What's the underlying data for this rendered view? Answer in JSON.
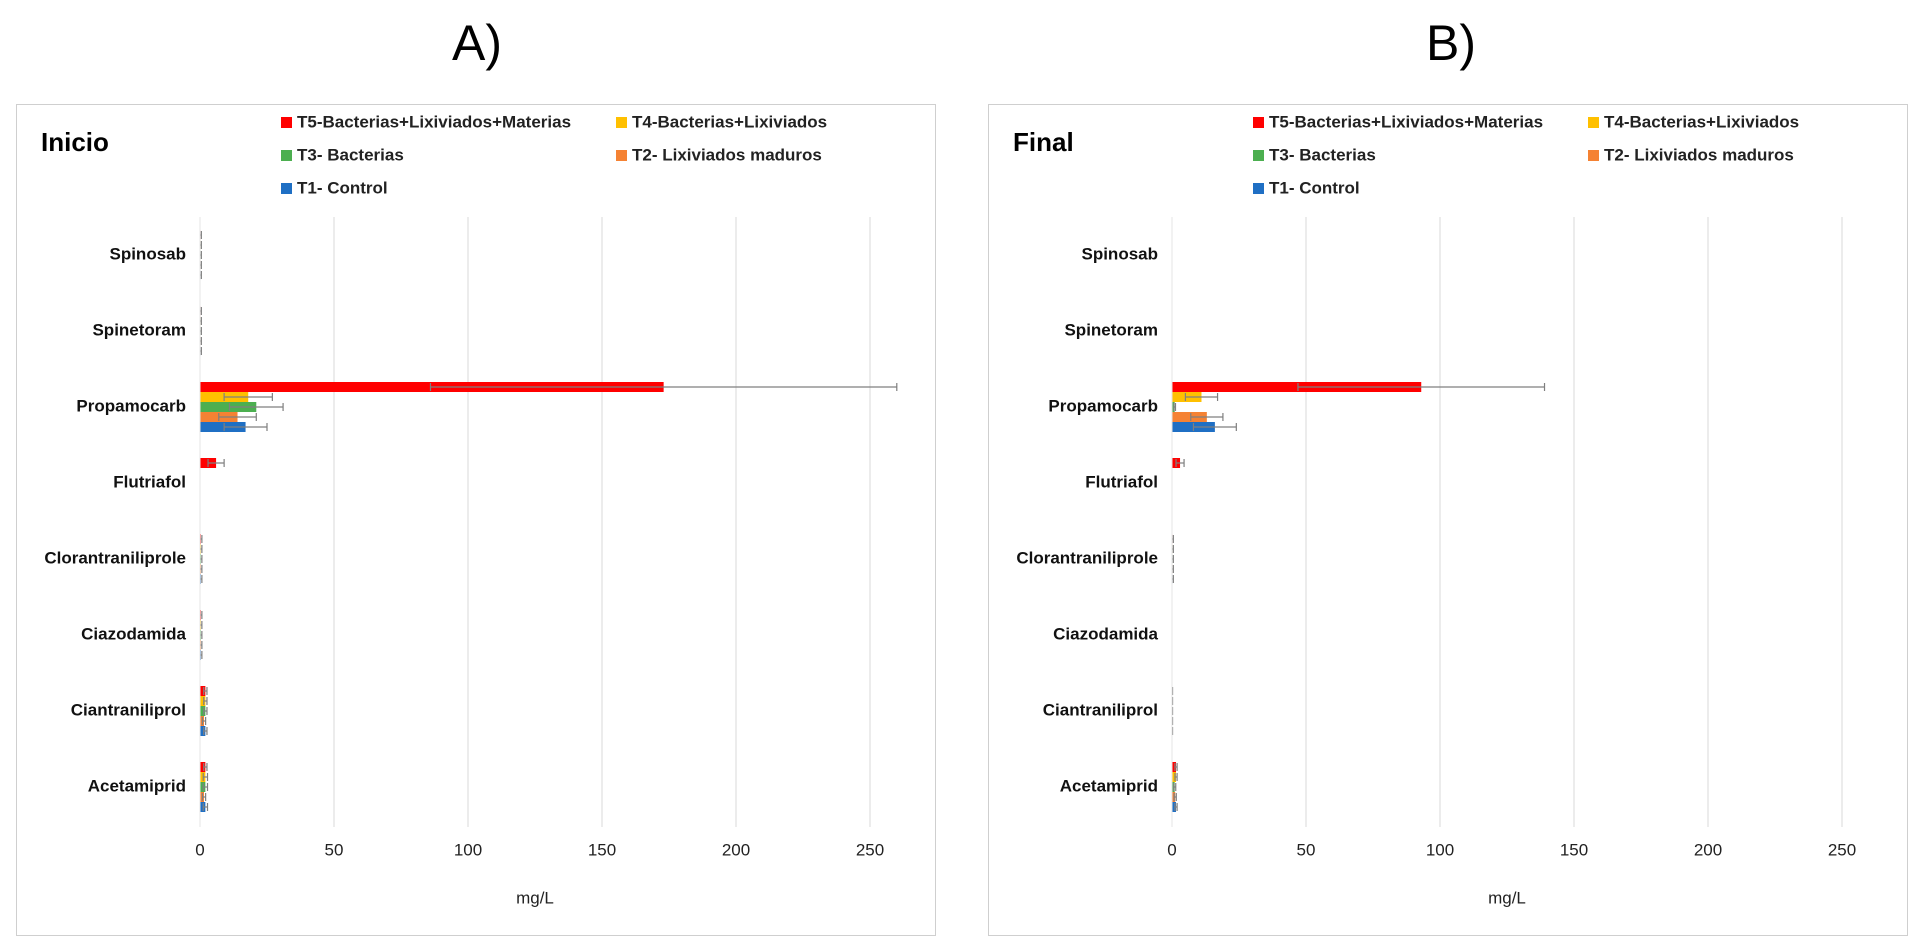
{
  "panels": [
    {
      "letter": "A)"
    },
    {
      "letter": "B)"
    }
  ],
  "chart_data": [
    {
      "type": "bar",
      "orientation": "horizontal",
      "title": "Inicio",
      "xlabel": "mg/L",
      "ylabel": "",
      "xlim": [
        0,
        250
      ],
      "xticks": [
        0,
        50,
        100,
        150,
        200,
        250
      ],
      "grid": "vertical",
      "legend_position": "top",
      "categories": [
        "Spinosab",
        "Spinetoram",
        "Propamocarb",
        "Flutriafol",
        "Clorantraniliprole",
        "Ciazodamida",
        "Ciantraniliprol",
        "Acetamiprid"
      ],
      "series": [
        {
          "name": "T5-Bacterias+Lixiviados+Materias",
          "color": "#ff0000",
          "values": [
            0.2,
            0.2,
            173,
            6,
            0.3,
            0.3,
            2,
            2
          ],
          "errors": [
            0.3,
            0.3,
            87,
            3,
            0.4,
            0.4,
            0.6,
            0.6
          ]
        },
        {
          "name": "T4-Bacterias+Lixiviados",
          "color": "#ffc000",
          "values": [
            0.2,
            0.2,
            18,
            0,
            0.3,
            0.3,
            2,
            2
          ],
          "errors": [
            0.3,
            0.3,
            9,
            0,
            0.4,
            0.4,
            0.6,
            0.8
          ]
        },
        {
          "name": "T3- Bacterias",
          "color": "#4caf50",
          "values": [
            0.2,
            0.2,
            21,
            0,
            0.3,
            0.3,
            2,
            2
          ],
          "errors": [
            0.3,
            0.3,
            10,
            0,
            0.4,
            0.4,
            0.6,
            0.8
          ]
        },
        {
          "name": "T2- Lixiviados maduros",
          "color": "#f58233",
          "values": [
            0.2,
            0.2,
            14,
            0,
            0.3,
            0.3,
            1.5,
            1.5
          ],
          "errors": [
            0.3,
            0.3,
            7,
            0,
            0.4,
            0.4,
            0.6,
            0.6
          ]
        },
        {
          "name": "T1- Control",
          "color": "#1f6fc4",
          "values": [
            0.2,
            0.2,
            17,
            0,
            0.3,
            0.3,
            2,
            2
          ],
          "errors": [
            0.3,
            0.3,
            8,
            0,
            0.4,
            0.4,
            0.6,
            0.8
          ]
        }
      ]
    },
    {
      "type": "bar",
      "orientation": "horizontal",
      "title": "Final",
      "xlabel": "mg/L",
      "ylabel": "",
      "xlim": [
        0,
        250
      ],
      "xticks": [
        0,
        50,
        100,
        150,
        200,
        250
      ],
      "grid": "vertical",
      "legend_position": "top",
      "categories": [
        "Spinosab",
        "Spinetoram",
        "Propamocarb",
        "Flutriafol",
        "Clorantraniliprole",
        "Ciazodamida",
        "Ciantraniliprol",
        "Acetamiprid"
      ],
      "series": [
        {
          "name": "T5-Bacterias+Lixiviados+Materias",
          "color": "#ff0000",
          "values": [
            0,
            0,
            93,
            3,
            0.2,
            0,
            0,
            1.5
          ],
          "errors": [
            0,
            0,
            46,
            1.5,
            0.3,
            0,
            0.2,
            0.4
          ]
        },
        {
          "name": "T4-Bacterias+Lixiviados",
          "color": "#ffc000",
          "values": [
            0,
            0,
            11,
            0,
            0.2,
            0,
            0,
            1.5
          ],
          "errors": [
            0,
            0,
            6,
            0,
            0.3,
            0,
            0.2,
            0.4
          ]
        },
        {
          "name": "T3- Bacterias",
          "color": "#4caf50",
          "values": [
            0,
            0,
            1,
            0,
            0.2,
            0,
            0,
            1
          ],
          "errors": [
            0,
            0,
            0.3,
            0,
            0.3,
            0,
            0.2,
            0.4
          ]
        },
        {
          "name": "T2- Lixiviados maduros",
          "color": "#f58233",
          "values": [
            0,
            0,
            13,
            0,
            0.2,
            0,
            0,
            1.2
          ],
          "errors": [
            0,
            0,
            6,
            0,
            0.3,
            0,
            0.2,
            0.4
          ]
        },
        {
          "name": "T1- Control",
          "color": "#1f6fc4",
          "values": [
            0,
            0,
            16,
            0,
            0.2,
            0,
            0,
            1.5
          ],
          "errors": [
            0,
            0,
            8,
            0,
            0.3,
            0,
            0.2,
            0.4
          ]
        }
      ]
    }
  ]
}
